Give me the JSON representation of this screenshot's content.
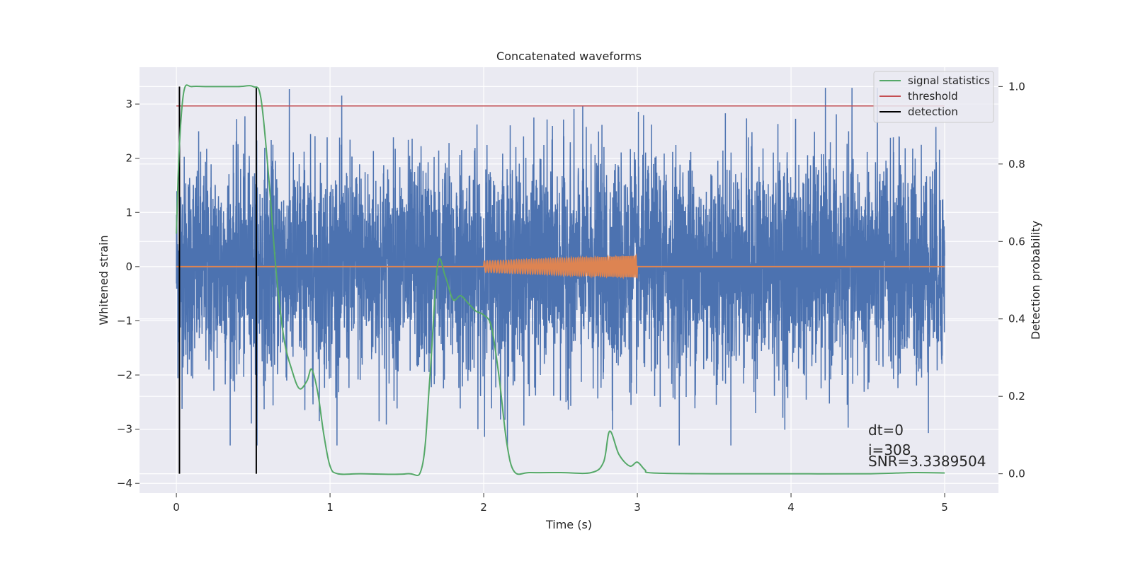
{
  "chart_data": {
    "type": "line",
    "title": "Concatenated waveforms",
    "xlabel": "Time (s)",
    "ylabel": "Whitened strain",
    "y2label": "Detection probability",
    "xlim": [
      -0.24,
      5.35
    ],
    "ylim": [
      -4.18,
      3.68
    ],
    "y2lim": [
      -0.05,
      1.05
    ],
    "xticks": [
      0,
      1,
      2,
      3,
      4,
      5
    ],
    "xtick_labels": [
      "0",
      "1",
      "2",
      "3",
      "4",
      "5"
    ],
    "yticks": [
      -4,
      -3,
      -2,
      -1,
      0,
      1,
      2,
      3
    ],
    "ytick_labels": [
      "−4",
      "−3",
      "−2",
      "−1",
      "0",
      "1",
      "2",
      "3"
    ],
    "y2ticks": [
      0.0,
      0.2,
      0.4,
      0.6,
      0.8,
      1.0
    ],
    "y2tick_labels": [
      "0.0",
      "0.2",
      "0.4",
      "0.6",
      "0.8",
      "1.0"
    ],
    "grid": true,
    "legend_position": "top-right",
    "colors": {
      "strain": "#4c72b0",
      "injection": "#dd8452",
      "signal_statistics": "#55a868",
      "threshold": "#c44e52",
      "detection": "#000000",
      "background": "#eaeaf2",
      "grid": "#ffffff"
    },
    "series": [
      {
        "name": "",
        "key": "strain",
        "axis": "left",
        "x_range": [
          0,
          5
        ],
        "sample_count": 5000,
        "typical_amplitude": 1.0,
        "max_abs_value": 3.3
      },
      {
        "name": "",
        "key": "injection",
        "axis": "left",
        "x": [
          0,
          2.0,
          2.0,
          3.0,
          3.0,
          5
        ],
        "amplitude_envelope": [
          0,
          0.1,
          0.1,
          0.2,
          0,
          0
        ],
        "chirp_segment": [
          2.0,
          3.0
        ]
      },
      {
        "name": "signal statistics",
        "key": "signal_statistics",
        "axis": "right",
        "x": [
          0,
          0.02,
          0.05,
          0.1,
          0.2,
          0.4,
          0.5,
          0.55,
          0.6,
          0.65,
          0.7,
          0.75,
          0.8,
          0.85,
          0.88,
          0.92,
          0.96,
          1.0,
          1.05,
          1.2,
          1.5,
          1.6,
          1.65,
          1.7,
          1.75,
          1.8,
          1.85,
          1.9,
          1.95,
          2.0,
          2.05,
          2.1,
          2.15,
          2.2,
          2.3,
          2.5,
          2.7,
          2.78,
          2.82,
          2.88,
          2.95,
          3.0,
          3.05,
          3.1,
          3.5,
          4.0,
          4.5,
          4.8,
          5.0
        ],
        "values": [
          0.62,
          0.85,
          0.99,
          1.0,
          1.0,
          1.0,
          1.0,
          0.97,
          0.77,
          0.52,
          0.35,
          0.27,
          0.22,
          0.24,
          0.27,
          0.21,
          0.1,
          0.02,
          0.0,
          0.0,
          0.0,
          0.02,
          0.25,
          0.54,
          0.51,
          0.45,
          0.46,
          0.44,
          0.42,
          0.41,
          0.38,
          0.25,
          0.08,
          0.005,
          0.003,
          0.003,
          0.003,
          0.03,
          0.11,
          0.05,
          0.02,
          0.03,
          0.01,
          0.002,
          0.0,
          0.0,
          0.0,
          0.003,
          0.002
        ]
      },
      {
        "name": "threshold",
        "key": "threshold",
        "axis": "right",
        "x": [
          0,
          5
        ],
        "values": [
          0.95,
          0.95
        ]
      },
      {
        "name": "detection",
        "key": "detection",
        "axis": "right",
        "vlines": [
          0.02,
          0.52
        ],
        "range": [
          0,
          1
        ]
      }
    ],
    "legend": [
      "signal statistics",
      "threshold",
      "detection"
    ],
    "annotations": {
      "dt": "dt=0",
      "i": "i=308",
      "snr": "SNR=3.3389504"
    }
  }
}
